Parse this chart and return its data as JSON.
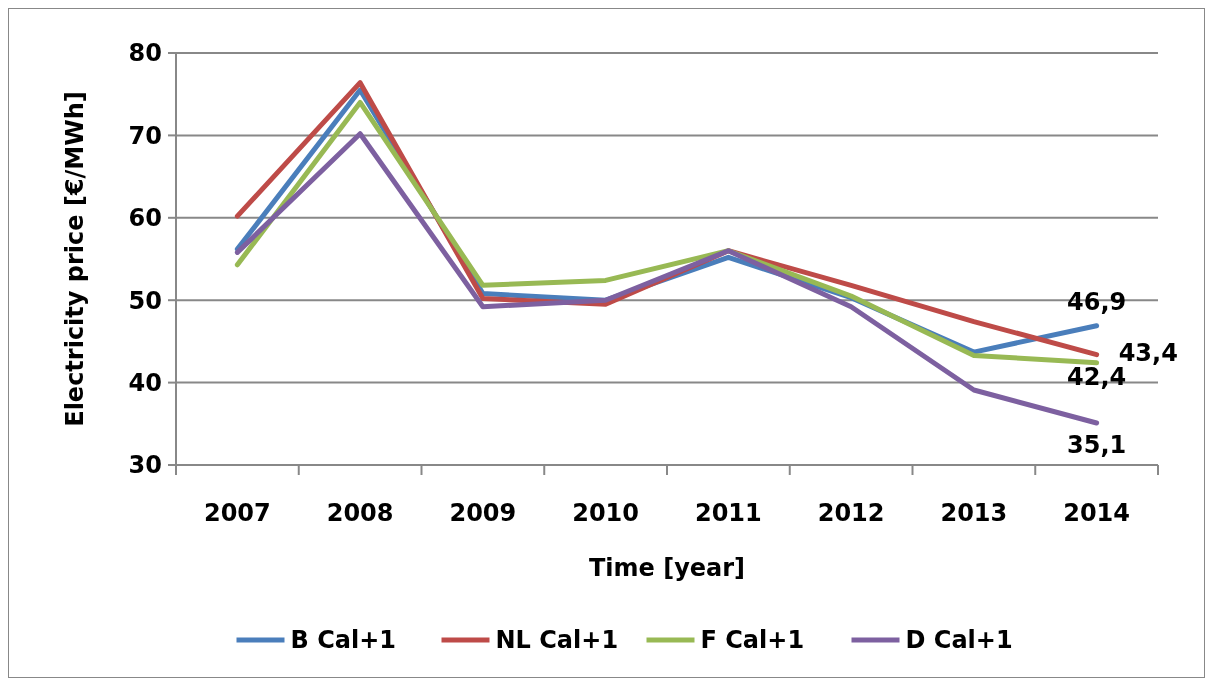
{
  "chart_data": {
    "type": "line",
    "xlabel": "Time [year]",
    "ylabel": "Electricity price [€/MWh]",
    "categories": [
      "2007",
      "2008",
      "2009",
      "2010",
      "2011",
      "2012",
      "2013",
      "2014"
    ],
    "series": [
      {
        "name": "B Cal+1",
        "color": "#4a7ebb",
        "values": [
          56.2,
          75.5,
          50.8,
          50,
          55.2,
          50.3,
          43.7,
          46.9
        ],
        "value_labels": [
          null,
          null,
          null,
          null,
          null,
          null,
          null,
          "46,9"
        ]
      },
      {
        "name": "NL Cal+1",
        "color": "#be4b48",
        "values": [
          60.2,
          76.4,
          50.2,
          49.5,
          56,
          51.8,
          47.4,
          43.4
        ],
        "value_labels": [
          null,
          null,
          null,
          null,
          null,
          null,
          null,
          "43,4"
        ]
      },
      {
        "name": "F Cal+1",
        "color": "#98b954",
        "values": [
          54.3,
          74,
          51.8,
          52.4,
          56,
          50.5,
          43.3,
          42.4
        ],
        "value_labels": [
          null,
          null,
          null,
          null,
          null,
          null,
          null,
          "42,4"
        ]
      },
      {
        "name": "D Cal+1",
        "color": "#7d60a0",
        "values": [
          55.8,
          70.2,
          49.2,
          50,
          56,
          49.2,
          39.1,
          35.1
        ],
        "value_labels": [
          null,
          null,
          null,
          null,
          null,
          null,
          null,
          "35,1"
        ]
      }
    ],
    "ylim": [
      30,
      80
    ],
    "yticks": [
      30,
      40,
      50,
      60,
      70,
      80
    ],
    "grid": "y",
    "legend": "bottom",
    "marker": "none",
    "line_style": "solid"
  }
}
